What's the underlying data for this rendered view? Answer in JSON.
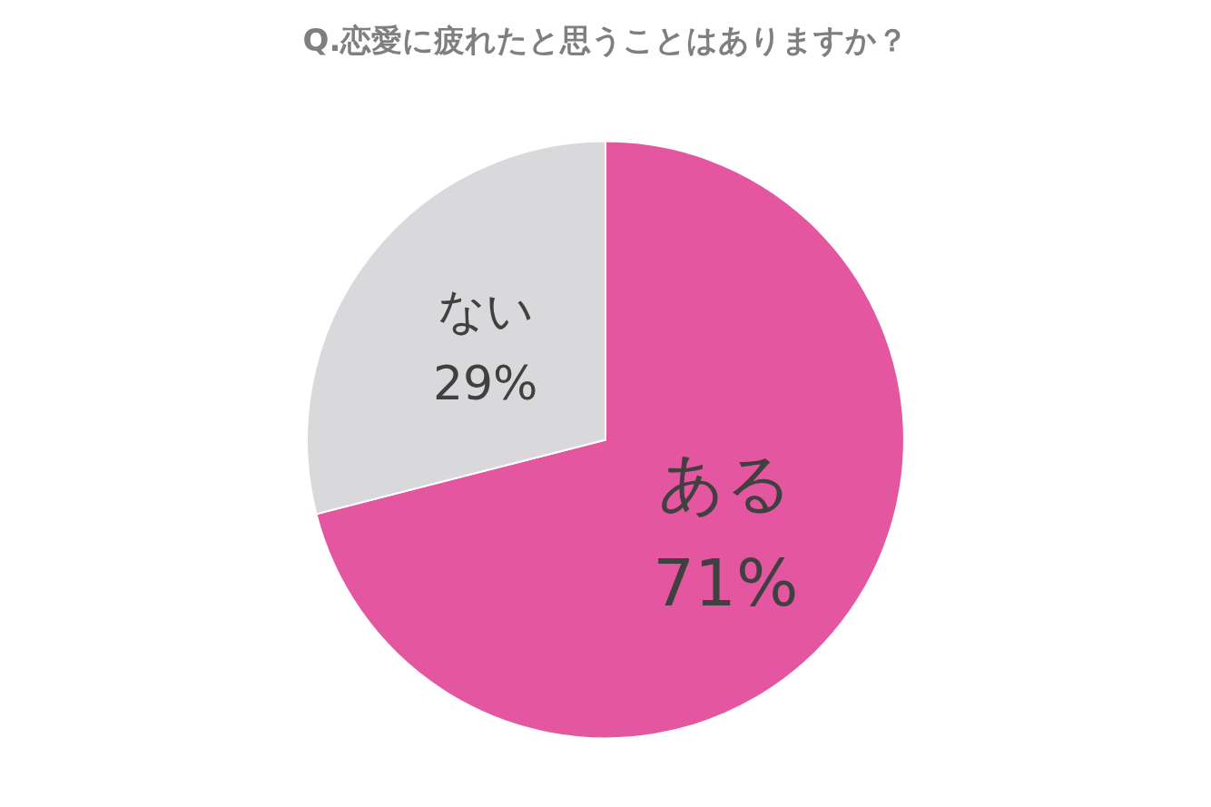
{
  "chart_data": {
    "type": "pie",
    "title": "Q.恋愛に疲れたと思うことはありますか？",
    "categories": [
      "ある",
      "ない"
    ],
    "values": [
      71,
      29
    ],
    "colors": [
      "#e4569f",
      "#d9d9dc"
    ],
    "value_labels": [
      "71%",
      "29%"
    ]
  }
}
